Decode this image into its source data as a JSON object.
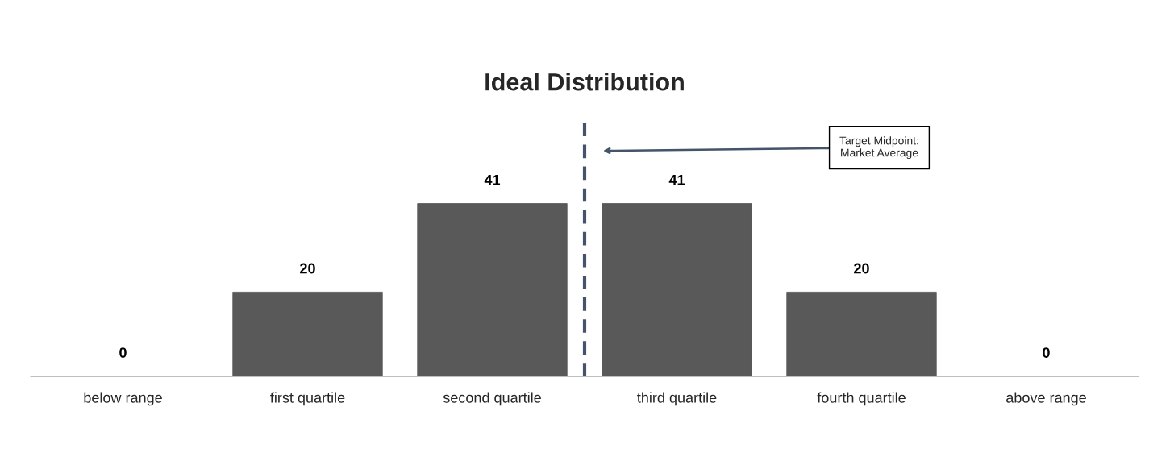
{
  "chart_data": {
    "type": "bar",
    "title": "Ideal Distribution",
    "categories": [
      "below range",
      "first quartile",
      "second quartile",
      "third quartile",
      "fourth quartile",
      "above range"
    ],
    "values": [
      0,
      20,
      41,
      41,
      20,
      0
    ],
    "color": "#595959",
    "data_labels": true,
    "grid": false,
    "legend": false,
    "annotations": [
      "Target Midpoint:\nMarket Average"
    ]
  }
}
